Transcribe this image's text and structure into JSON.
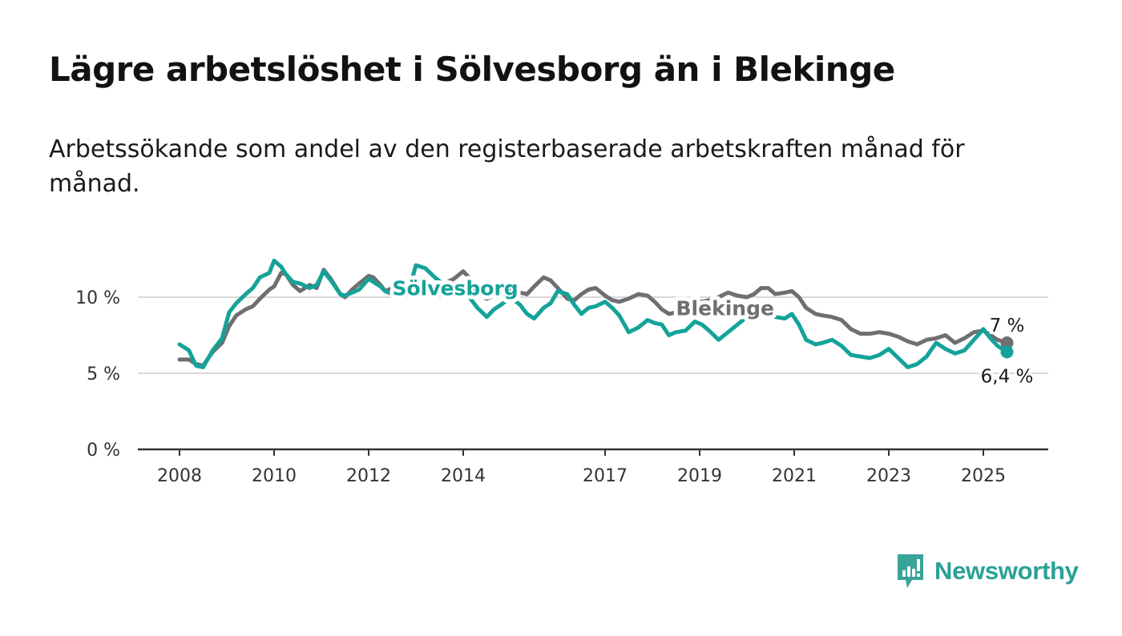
{
  "title": "Lägre arbetslöshet i Sölvesborg än i Blekinge",
  "subtitle": "Arbetssökande som andel av den registerbaserade arbetskraften månad för månad.",
  "brand": {
    "name": "Newsworthy",
    "icon": "newsworthy-logo-icon",
    "color": "#3aa39a"
  },
  "chart_data": {
    "type": "line",
    "x_range": [
      2007.88,
      2025.6
    ],
    "ylim": [
      0,
      12.5
    ],
    "y_ticks": [
      {
        "value": 0,
        "label": "0 %"
      },
      {
        "value": 5,
        "label": "5 %"
      },
      {
        "value": 10,
        "label": "10 %"
      }
    ],
    "x_ticks": [
      {
        "value": 2008,
        "label": "2008"
      },
      {
        "value": 2010,
        "label": "2010"
      },
      {
        "value": 2012,
        "label": "2012"
      },
      {
        "value": 2014,
        "label": "2014"
      },
      {
        "value": 2017,
        "label": "2017"
      },
      {
        "value": 2019,
        "label": "2019"
      },
      {
        "value": 2021,
        "label": "2021"
      },
      {
        "value": 2023,
        "label": "2023"
      },
      {
        "value": 2025,
        "label": "2025"
      }
    ],
    "grid": true,
    "series": [
      {
        "name": "Blekinge",
        "color": "#6f6e73",
        "end_label": "7 %",
        "x": [
          2008.0,
          2008.2,
          2008.35,
          2008.5,
          2008.7,
          2008.9,
          2009.05,
          2009.2,
          2009.4,
          2009.55,
          2009.7,
          2009.9,
          2010.0,
          2010.15,
          2010.25,
          2010.4,
          2010.55,
          2010.75,
          2010.9,
          2011.05,
          2011.2,
          2011.4,
          2011.5,
          2011.65,
          2011.8,
          2012.0,
          2012.1,
          2012.25,
          2012.35,
          2012.5,
          2012.7,
          2012.9,
          2013.0,
          2013.2,
          2013.4,
          2013.6,
          2013.8,
          2014.0,
          2014.15,
          2014.3,
          2014.5,
          2014.65,
          2014.8,
          2015.0,
          2015.2,
          2015.35,
          2015.5,
          2015.7,
          2015.85,
          2016.0,
          2016.2,
          2016.35,
          2016.5,
          2016.65,
          2016.8,
          2017.0,
          2017.15,
          2017.3,
          2017.5,
          2017.7,
          2017.9,
          2018.05,
          2018.2,
          2018.35,
          2018.5,
          2018.7,
          2018.9,
          2019.05,
          2019.2,
          2019.4,
          2019.6,
          2019.8,
          2020.0,
          2020.15,
          2020.3,
          2020.45,
          2020.6,
          2020.8,
          2020.95,
          2021.1,
          2021.25,
          2021.45,
          2021.6,
          2021.8,
          2022.0,
          2022.2,
          2022.4,
          2022.6,
          2022.8,
          2023.0,
          2023.2,
          2023.4,
          2023.6,
          2023.8,
          2024.0,
          2024.2,
          2024.4,
          2024.6,
          2024.8,
          2025.0,
          2025.15,
          2025.3,
          2025.5
        ],
        "y": [
          5.9,
          5.9,
          5.6,
          5.5,
          6.4,
          7.0,
          8.1,
          8.8,
          9.2,
          9.4,
          9.9,
          10.5,
          10.7,
          11.6,
          11.5,
          10.8,
          10.4,
          10.8,
          10.6,
          11.8,
          11.2,
          10.2,
          10.0,
          10.5,
          10.9,
          11.4,
          11.3,
          10.8,
          10.4,
          10.6,
          10.9,
          11.1,
          11.3,
          11.1,
          10.8,
          10.9,
          11.2,
          11.7,
          11.2,
          10.3,
          9.9,
          10.1,
          10.4,
          10.5,
          10.3,
          10.2,
          10.7,
          11.3,
          11.1,
          10.6,
          9.9,
          9.8,
          10.2,
          10.5,
          10.6,
          10.1,
          9.8,
          9.7,
          9.9,
          10.2,
          10.1,
          9.7,
          9.2,
          8.9,
          9.0,
          9.5,
          9.8,
          9.7,
          9.8,
          10.0,
          10.3,
          10.1,
          10.0,
          10.2,
          10.6,
          10.6,
          10.2,
          10.3,
          10.4,
          10.0,
          9.3,
          8.9,
          8.8,
          8.7,
          8.5,
          7.9,
          7.6,
          7.6,
          7.7,
          7.6,
          7.4,
          7.1,
          6.9,
          7.2,
          7.3,
          7.5,
          7.0,
          7.3,
          7.7,
          7.8,
          7.5,
          7.2,
          7.0
        ]
      },
      {
        "name": "Sölvesborg",
        "color": "#14a399",
        "end_label": "6,4 %",
        "x": [
          2008.0,
          2008.2,
          2008.35,
          2008.5,
          2008.7,
          2008.9,
          2009.05,
          2009.2,
          2009.4,
          2009.55,
          2009.7,
          2009.9,
          2010.0,
          2010.15,
          2010.25,
          2010.4,
          2010.55,
          2010.75,
          2010.9,
          2011.05,
          2011.2,
          2011.4,
          2011.5,
          2011.65,
          2011.8,
          2012.0,
          2012.1,
          2012.25,
          2012.35,
          2012.5,
          2012.7,
          2012.9,
          2013.0,
          2013.2,
          2013.4,
          2013.6,
          2013.8,
          2014.0,
          2014.15,
          2014.3,
          2014.5,
          2014.65,
          2014.8,
          2015.0,
          2015.2,
          2015.35,
          2015.5,
          2015.7,
          2015.85,
          2016.0,
          2016.2,
          2016.35,
          2016.5,
          2016.65,
          2016.8,
          2017.0,
          2017.15,
          2017.3,
          2017.5,
          2017.7,
          2017.9,
          2018.05,
          2018.2,
          2018.35,
          2018.5,
          2018.7,
          2018.9,
          2019.05,
          2019.2,
          2019.4,
          2019.6,
          2019.8,
          2020.0,
          2020.15,
          2020.3,
          2020.45,
          2020.6,
          2020.8,
          2020.95,
          2021.1,
          2021.25,
          2021.45,
          2021.6,
          2021.8,
          2022.0,
          2022.2,
          2022.4,
          2022.6,
          2022.8,
          2023.0,
          2023.2,
          2023.4,
          2023.6,
          2023.8,
          2024.0,
          2024.2,
          2024.4,
          2024.6,
          2024.8,
          2025.0,
          2025.15,
          2025.3,
          2025.5
        ],
        "y": [
          6.9,
          6.5,
          5.5,
          5.4,
          6.5,
          7.3,
          9.0,
          9.6,
          10.2,
          10.6,
          11.3,
          11.6,
          12.4,
          12.0,
          11.5,
          11.0,
          10.9,
          10.6,
          10.8,
          11.7,
          11.1,
          10.2,
          10.1,
          10.3,
          10.5,
          11.2,
          11.0,
          10.7,
          10.4,
          10.2,
          10.4,
          11.0,
          12.1,
          11.9,
          11.3,
          10.8,
          10.6,
          10.6,
          9.9,
          9.3,
          8.7,
          9.2,
          9.5,
          10.0,
          9.5,
          8.9,
          8.6,
          9.3,
          9.6,
          10.4,
          10.2,
          9.5,
          8.9,
          9.3,
          9.4,
          9.7,
          9.3,
          8.8,
          7.7,
          8.0,
          8.5,
          8.3,
          8.2,
          7.5,
          7.7,
          7.8,
          8.4,
          8.2,
          7.8,
          7.2,
          7.7,
          8.2,
          8.7,
          8.8,
          9.2,
          8.9,
          8.7,
          8.6,
          8.9,
          8.2,
          7.2,
          6.9,
          7.0,
          7.2,
          6.8,
          6.2,
          6.1,
          6.0,
          6.2,
          6.6,
          6.0,
          5.4,
          5.6,
          6.1,
          7.0,
          6.6,
          6.3,
          6.5,
          7.2,
          7.9,
          7.3,
          6.8,
          6.4
        ]
      }
    ]
  }
}
